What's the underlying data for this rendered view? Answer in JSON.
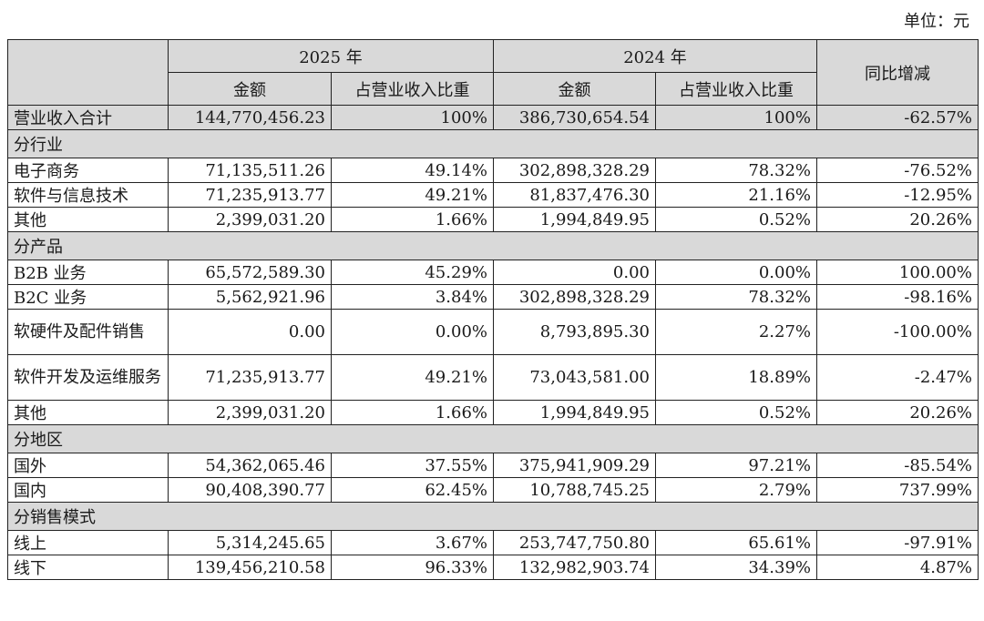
{
  "unit_label": "单位：元",
  "header": {
    "y2025": "2025 年",
    "y2024": "2024 年",
    "amount": "金额",
    "ratio": "占营业收入比重",
    "yoy": "同比增减"
  },
  "total": {
    "label": "营业收入合计",
    "amt2025": "144,770,456.23",
    "ratio2025": "100%",
    "amt2024": "386,730,654.54",
    "ratio2024": "100%",
    "yoy": "-62.57%"
  },
  "sections": [
    {
      "title": "分行业",
      "rows": [
        {
          "label": "电子商务",
          "amt2025": "71,135,511.26",
          "ratio2025": "49.14%",
          "amt2024": "302,898,328.29",
          "ratio2024": "78.32%",
          "yoy": "-76.52%"
        },
        {
          "label": "软件与信息技术",
          "amt2025": "71,235,913.77",
          "ratio2025": "49.21%",
          "amt2024": "81,837,476.30",
          "ratio2024": "21.16%",
          "yoy": "-12.95%"
        },
        {
          "label": "其他",
          "amt2025": "2,399,031.20",
          "ratio2025": "1.66%",
          "amt2024": "1,994,849.95",
          "ratio2024": "0.52%",
          "yoy": "20.26%"
        }
      ]
    },
    {
      "title": "分产品",
      "rows": [
        {
          "label": "B2B 业务",
          "amt2025": "65,572,589.30",
          "ratio2025": "45.29%",
          "amt2024": "0.00",
          "ratio2024": "0.00%",
          "yoy": "100.00%"
        },
        {
          "label": "B2C 业务",
          "amt2025": "5,562,921.96",
          "ratio2025": "3.84%",
          "amt2024": "302,898,328.29",
          "ratio2024": "78.32%",
          "yoy": "-98.16%"
        },
        {
          "label": "软硬件及配件销售",
          "amt2025": "0.00",
          "ratio2025": "0.00%",
          "amt2024": "8,793,895.30",
          "ratio2024": "2.27%",
          "yoy": "-100.00%"
        },
        {
          "label": "软件开发及运维服务",
          "amt2025": "71,235,913.77",
          "ratio2025": "49.21%",
          "amt2024": "73,043,581.00",
          "ratio2024": "18.89%",
          "yoy": "-2.47%"
        },
        {
          "label": "其他",
          "amt2025": "2,399,031.20",
          "ratio2025": "1.66%",
          "amt2024": "1,994,849.95",
          "ratio2024": "0.52%",
          "yoy": "20.26%"
        }
      ]
    },
    {
      "title": "分地区",
      "rows": [
        {
          "label": "国外",
          "amt2025": "54,362,065.46",
          "ratio2025": "37.55%",
          "amt2024": "375,941,909.29",
          "ratio2024": "97.21%",
          "yoy": "-85.54%"
        },
        {
          "label": "国内",
          "amt2025": "90,408,390.77",
          "ratio2025": "62.45%",
          "amt2024": "10,788,745.25",
          "ratio2024": "2.79%",
          "yoy": "737.99%"
        }
      ]
    },
    {
      "title": "分销售模式",
      "rows": [
        {
          "label": "线上",
          "amt2025": "5,314,245.65",
          "ratio2025": "3.67%",
          "amt2024": "253,747,750.80",
          "ratio2024": "65.61%",
          "yoy": "-97.91%"
        },
        {
          "label": "线下",
          "amt2025": "139,456,210.58",
          "ratio2025": "96.33%",
          "amt2024": "132,982,903.74",
          "ratio2024": "34.39%",
          "yoy": "4.87%"
        }
      ]
    }
  ]
}
